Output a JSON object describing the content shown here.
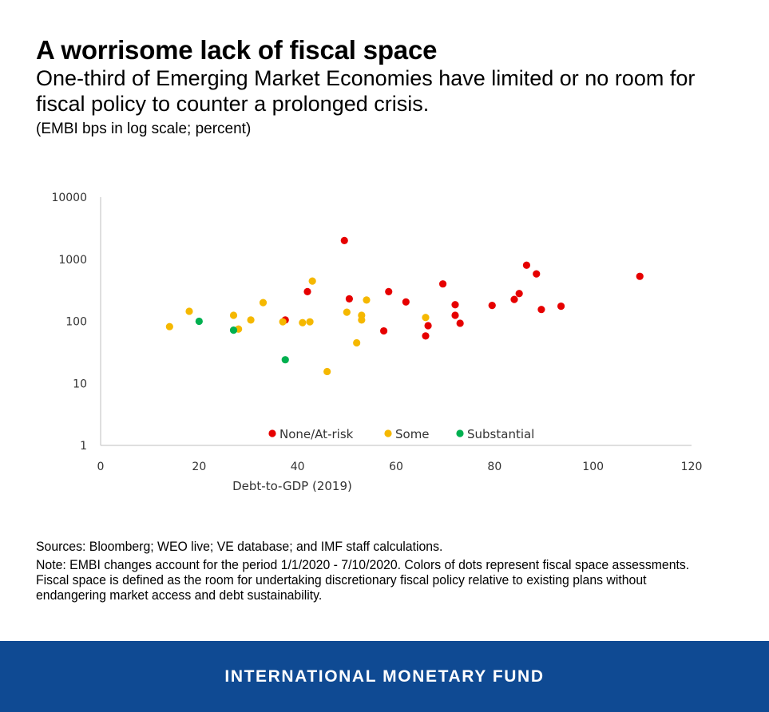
{
  "header": {
    "title": "A worrisome lack of fiscal space",
    "subtitle": "One-third of Emerging Market Economies have limited or no room for fiscal policy to counter a prolonged crisis.",
    "units": "(EMBI bps in log scale; percent)"
  },
  "chart_data": {
    "type": "scatter",
    "title": "A worrisome lack of fiscal space",
    "xlabel": "Debt-to-GDP (2019)",
    "ylabel": "EMBI bps (log scale)",
    "xlim": [
      0,
      120
    ],
    "ylim": [
      1,
      10000
    ],
    "yscale": "log",
    "x_ticks": [
      0,
      20,
      40,
      60,
      80,
      100,
      120
    ],
    "y_ticks": [
      1,
      10,
      100,
      1000,
      10000
    ],
    "legend_position": "bottom",
    "series": [
      {
        "name": "None/At-risk",
        "color": "#e60000",
        "points": [
          [
            37.5,
            105
          ],
          [
            42,
            300
          ],
          [
            49.5,
            2000
          ],
          [
            50.5,
            230
          ],
          [
            57.5,
            70
          ],
          [
            58.5,
            300
          ],
          [
            62,
            205
          ],
          [
            69.5,
            400
          ],
          [
            66,
            58
          ],
          [
            66.5,
            85
          ],
          [
            72,
            125
          ],
          [
            72,
            185
          ],
          [
            73,
            93
          ],
          [
            79.5,
            180
          ],
          [
            84,
            225
          ],
          [
            85,
            280
          ],
          [
            86.5,
            800
          ],
          [
            88.5,
            580
          ],
          [
            89.5,
            155
          ],
          [
            93.5,
            175
          ],
          [
            109.5,
            530
          ]
        ]
      },
      {
        "name": "Some",
        "color": "#f5b800",
        "points": [
          [
            14,
            82
          ],
          [
            18,
            145
          ],
          [
            27,
            125
          ],
          [
            28,
            75
          ],
          [
            30.5,
            105
          ],
          [
            33,
            200
          ],
          [
            37,
            98
          ],
          [
            41,
            95
          ],
          [
            42.5,
            98
          ],
          [
            43,
            445
          ],
          [
            46,
            15.5
          ],
          [
            50,
            140
          ],
          [
            52,
            45
          ],
          [
            53,
            125
          ],
          [
            53,
            105
          ],
          [
            54,
            220
          ],
          [
            66,
            115
          ]
        ]
      },
      {
        "name": "Substantial",
        "color": "#00b050",
        "points": [
          [
            20,
            100
          ],
          [
            27,
            72
          ],
          [
            37.5,
            24
          ]
        ]
      }
    ]
  },
  "notes": {
    "sources": "Sources: Bloomberg; WEO live; VE database; and IMF staff calculations.",
    "note": "Note: EMBI changes account for the period 1/1/2020 - 7/10/2020. Colors of dots represent fiscal space assessments. Fiscal space is defined as the room for undertaking discretionary fiscal policy relative to existing plans without endangering market access and debt sustainability."
  },
  "footer": {
    "label": "INTERNATIONAL MONETARY FUND",
    "background": "#0f4a93"
  }
}
